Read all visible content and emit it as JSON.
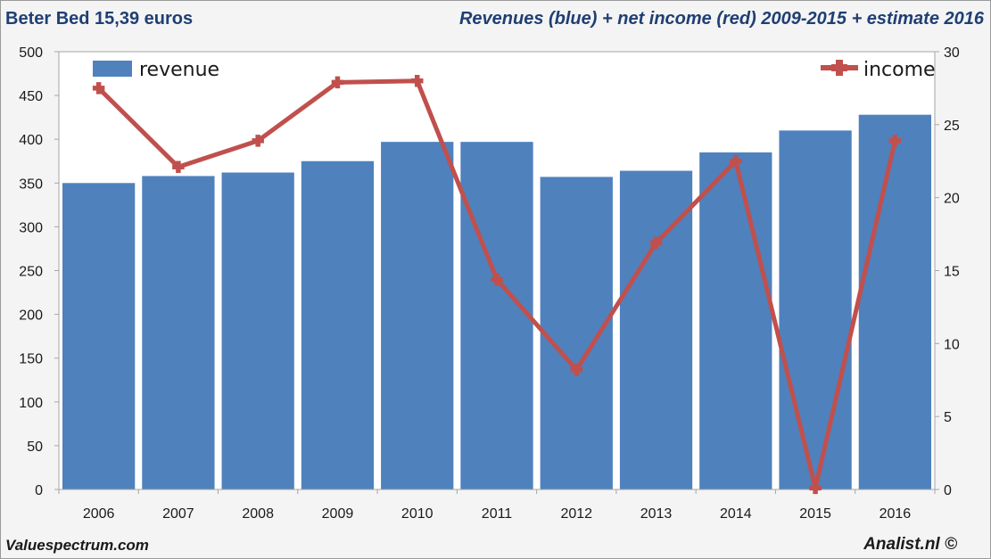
{
  "header": {
    "left_title": "Beter Bed 15,39 euros",
    "right_title": "Revenues (blue) + net income (red) 2009-2015 + estimate 2016"
  },
  "footer": {
    "left": "Valuespectrum.com",
    "right": "Analist.nl ©"
  },
  "colors": {
    "revenue": "#4f81bd",
    "income": "#c0504d",
    "title_text": "#1f3f73"
  },
  "chart_data": {
    "type": "bar",
    "categories": [
      "2006",
      "2007",
      "2008",
      "2009",
      "2010",
      "2011",
      "2012",
      "2013",
      "2014",
      "2015",
      "2016"
    ],
    "series": [
      {
        "name": "revenue",
        "type": "bar",
        "axis": "left",
        "values": [
          350,
          358,
          362,
          375,
          397,
          397,
          357,
          364,
          385,
          410,
          428
        ]
      },
      {
        "name": "income",
        "type": "line",
        "axis": "right",
        "values": [
          27.5,
          22.1,
          23.9,
          27.9,
          28.0,
          14.4,
          8.2,
          16.9,
          22.5,
          0.1,
          23.9
        ]
      }
    ],
    "ylim_left": [
      0,
      500
    ],
    "yticks_left": [
      0,
      50,
      100,
      150,
      200,
      250,
      300,
      350,
      400,
      450,
      500
    ],
    "ylim_right": [
      0,
      30
    ],
    "yticks_right": [
      0,
      5,
      10,
      15,
      20,
      25,
      30
    ],
    "legend": {
      "revenue_label": "revenue",
      "income_label": "income"
    },
    "grid": false
  }
}
